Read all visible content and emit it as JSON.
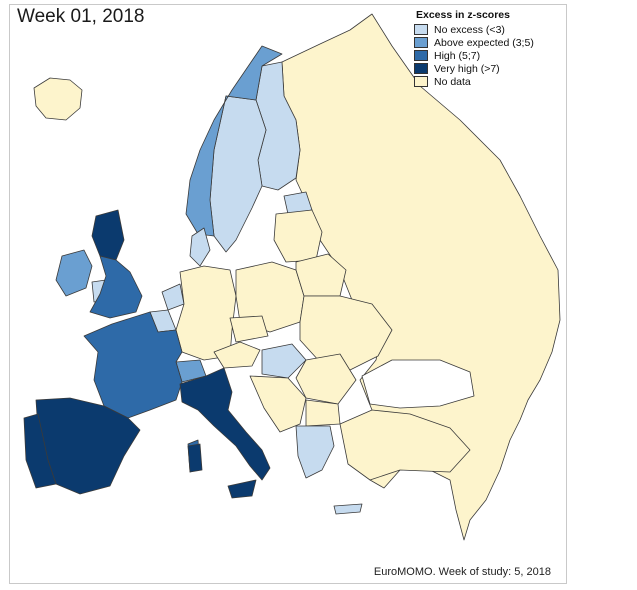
{
  "map": {
    "title": "Week 01, 2018",
    "legend": {
      "title": "Excess in z-scores",
      "items": [
        {
          "label": "No excess (<3)",
          "color": "#c6dbef"
        },
        {
          "label": "Above expected (3;5)",
          "color": "#6a9fd1"
        },
        {
          "label": "High (5;7)",
          "color": "#2e6aa8"
        },
        {
          "label": "Very high (>7)",
          "color": "#0b3a6e"
        },
        {
          "label": "No data",
          "color": "#fdf4cc"
        }
      ]
    },
    "source": "EuroMOMO. Week of study: 5, 2018"
  }
}
